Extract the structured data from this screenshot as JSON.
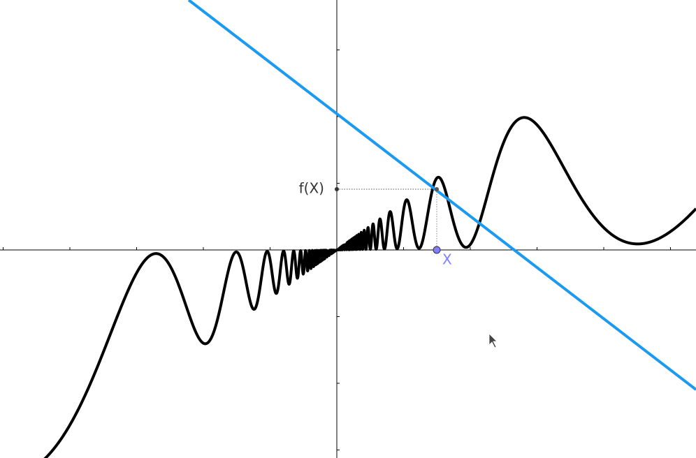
{
  "labels": {
    "function_value": "f(X)",
    "point": "X"
  }
}
